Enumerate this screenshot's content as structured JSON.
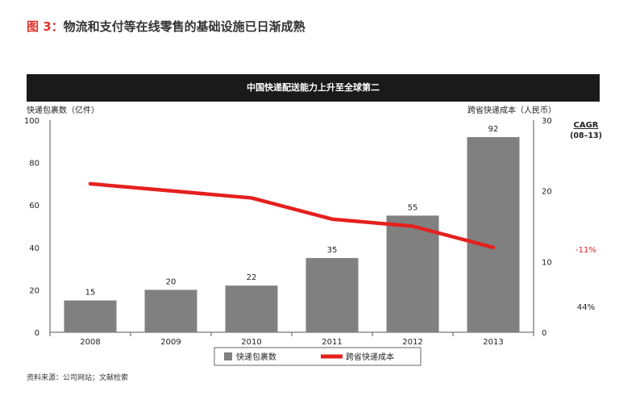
{
  "figure": {
    "label": "图 3：",
    "title": "物流和支付等在线零售的基础设施已日渐成熟"
  },
  "source_note": "资料来源：公司网站；文献检索",
  "colors": {
    "bar": "#808080",
    "line": "#e4201e",
    "banner": "#1a1a1a",
    "title_accent": "#e4312b",
    "cagr_negative": "#e4201e"
  },
  "chart_data": {
    "type": "bar",
    "title": "中国快递配送能力上升至全球第二",
    "categories": [
      "2008",
      "2009",
      "2010",
      "2011",
      "2012",
      "2013"
    ],
    "series": [
      {
        "name": "快递包裹数",
        "type": "bar",
        "axis": "left",
        "values": [
          15,
          20,
          22,
          35,
          55,
          92
        ]
      },
      {
        "name": "跨省快递成本",
        "type": "line",
        "axis": "right",
        "values": [
          21,
          20,
          19,
          16,
          15,
          12
        ]
      }
    ],
    "ylabel": "快递包裹数（亿件）",
    "ylim": [
      0,
      100
    ],
    "yticks": [
      0,
      20,
      40,
      60,
      80,
      100
    ],
    "y2label": "跨省快递成本（人民币）",
    "y2lim": [
      0,
      30
    ],
    "y2ticks": [
      0,
      10,
      20,
      30
    ],
    "cagr": {
      "header": "CAGR",
      "period": "(08–13)",
      "values": [
        {
          "series": "跨省快递成本",
          "value": "-11%"
        },
        {
          "series": "快递包裹数",
          "value": "44%"
        }
      ]
    },
    "legend": {
      "position": "bottom",
      "entries": [
        "快递包裹数",
        "跨省快递成本"
      ]
    },
    "grid": false
  }
}
